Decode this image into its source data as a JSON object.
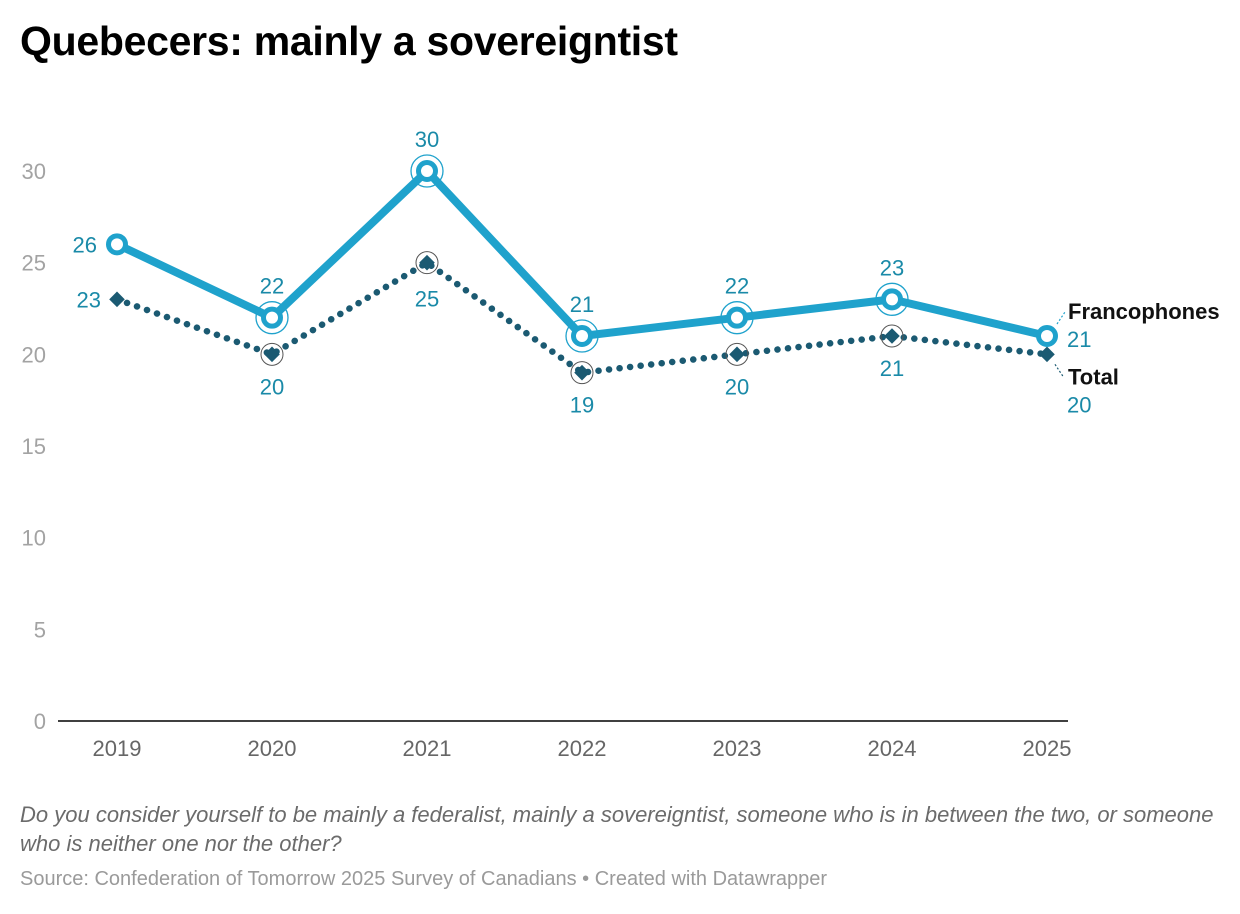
{
  "title": "Quebecers: mainly a sovereigntist",
  "subtitle": "Do you consider yourself to be mainly a federalist, mainly a sovereigntist, someone who is in between the two, or someone who is neither one nor the other?",
  "footer": "Source: Confederation of Tomorrow 2025 Survey of Canadians • Created with Datawrapper",
  "chart_data": {
    "type": "line",
    "categories": [
      "2019",
      "2020",
      "2021",
      "2022",
      "2023",
      "2024",
      "2025"
    ],
    "ylim": [
      0,
      30
    ],
    "yticks": [
      0,
      5,
      10,
      15,
      20,
      25,
      30
    ],
    "series": [
      {
        "name": "Francophones",
        "values": [
          26,
          22,
          30,
          21,
          22,
          23,
          21
        ],
        "color": "#1fa2cc",
        "style": "solid"
      },
      {
        "name": "Total",
        "values": [
          23,
          20,
          25,
          19,
          20,
          21,
          20
        ],
        "color": "#1b5a72",
        "style": "dotted"
      }
    ],
    "label_color": "#1a8aa8"
  }
}
